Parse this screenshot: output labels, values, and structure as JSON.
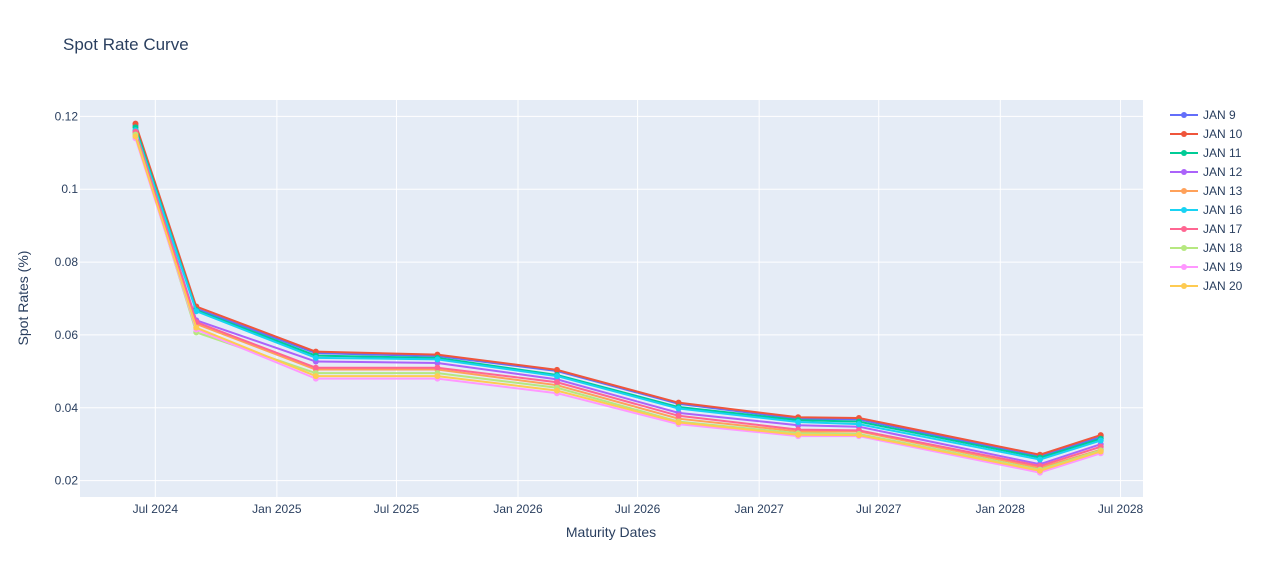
{
  "chart_data": {
    "type": "line",
    "title": "Spot Rate Curve",
    "xlabel": "Maturity Dates",
    "ylabel": "Spot Rates (%)",
    "x_type": "date",
    "xlim": [
      "2024-03-09",
      "2028-08-04"
    ],
    "ylim": [
      0.0155,
      0.1245
    ],
    "x_ticks": [
      {
        "value": "2024-07-01",
        "label": "Jul 2024"
      },
      {
        "value": "2025-01-01",
        "label": "Jan 2025"
      },
      {
        "value": "2025-07-01",
        "label": "Jul 2025"
      },
      {
        "value": "2026-01-01",
        "label": "Jan 2026"
      },
      {
        "value": "2026-07-01",
        "label": "Jul 2026"
      },
      {
        "value": "2027-01-01",
        "label": "Jan 2027"
      },
      {
        "value": "2027-07-01",
        "label": "Jul 2027"
      },
      {
        "value": "2028-01-01",
        "label": "Jan 2028"
      },
      {
        "value": "2028-07-01",
        "label": "Jul 2028"
      }
    ],
    "y_ticks": [
      {
        "value": 0.02,
        "label": "0.02"
      },
      {
        "value": 0.04,
        "label": "0.04"
      },
      {
        "value": 0.06,
        "label": "0.06"
      },
      {
        "value": 0.08,
        "label": "0.08"
      },
      {
        "value": 0.1,
        "label": "0.1"
      },
      {
        "value": 0.12,
        "label": "0.12"
      }
    ],
    "grid": true,
    "legend_position": "right",
    "plot_background": "#e5ecf6",
    "x": [
      "2024-06-01",
      "2024-09-01",
      "2025-03-01",
      "2025-09-01",
      "2026-03-01",
      "2026-09-01",
      "2027-03-01",
      "2027-06-01",
      "2028-03-01",
      "2028-06-01"
    ],
    "series": [
      {
        "name": "JAN 9",
        "color": "#636efa",
        "values": [
          0.1175,
          0.0672,
          0.055,
          0.0542,
          0.0501,
          0.0411,
          0.037,
          0.0368,
          0.0266,
          0.032
        ]
      },
      {
        "name": "JAN 10",
        "color": "#EF553B",
        "values": [
          0.118,
          0.0678,
          0.0554,
          0.0546,
          0.0504,
          0.0414,
          0.0374,
          0.0372,
          0.0271,
          0.0325
        ]
      },
      {
        "name": "JAN 11",
        "color": "#00cc96",
        "values": [
          0.117,
          0.0668,
          0.0543,
          0.0537,
          0.049,
          0.0402,
          0.0366,
          0.0362,
          0.0263,
          0.0315
        ]
      },
      {
        "name": "JAN 12",
        "color": "#ab63fa",
        "values": [
          0.116,
          0.064,
          0.0527,
          0.0523,
          0.0478,
          0.0386,
          0.0352,
          0.0348,
          0.0245,
          0.03
        ]
      },
      {
        "name": "JAN 13",
        "color": "#FFA15A",
        "values": [
          0.1155,
          0.063,
          0.0505,
          0.0505,
          0.0462,
          0.037,
          0.0335,
          0.0335,
          0.0235,
          0.0285
        ]
      },
      {
        "name": "JAN 16",
        "color": "#19d3f3",
        "values": [
          0.1162,
          0.0665,
          0.0537,
          0.0533,
          0.0487,
          0.0398,
          0.0361,
          0.0355,
          0.0258,
          0.031
        ]
      },
      {
        "name": "JAN 17",
        "color": "#FF6692",
        "values": [
          0.1158,
          0.0635,
          0.051,
          0.051,
          0.047,
          0.0378,
          0.034,
          0.0338,
          0.024,
          0.0293
        ]
      },
      {
        "name": "JAN 18",
        "color": "#B6E880",
        "values": [
          0.115,
          0.0607,
          0.0495,
          0.0495,
          0.0455,
          0.0362,
          0.033,
          0.0328,
          0.023,
          0.0283
        ]
      },
      {
        "name": "JAN 19",
        "color": "#FF97FF",
        "values": [
          0.114,
          0.0615,
          0.048,
          0.048,
          0.044,
          0.0355,
          0.0322,
          0.0322,
          0.0222,
          0.0275
        ]
      },
      {
        "name": "JAN 20",
        "color": "#FECB52",
        "values": [
          0.1145,
          0.062,
          0.0487,
          0.0487,
          0.0447,
          0.036,
          0.0326,
          0.0325,
          0.0227,
          0.028
        ]
      }
    ]
  }
}
